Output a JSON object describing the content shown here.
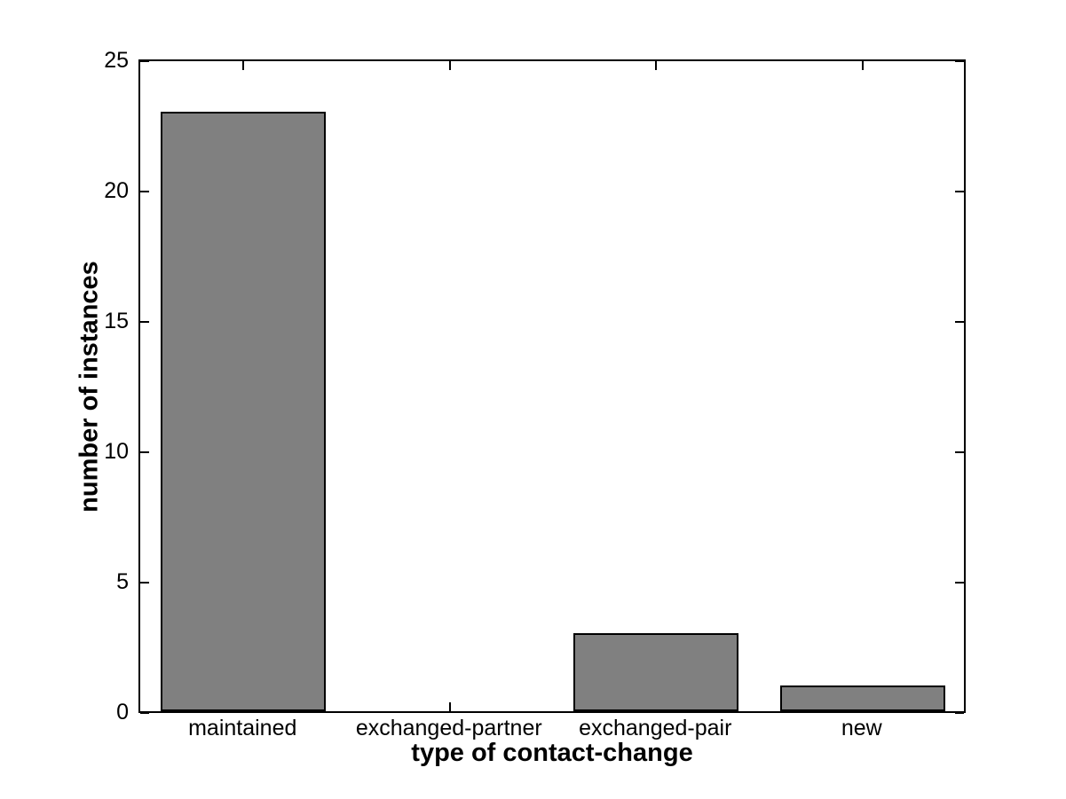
{
  "chart_data": {
    "type": "bar",
    "categories": [
      "maintained",
      "exchanged-partner",
      "exchanged-pair",
      "new"
    ],
    "values": [
      23,
      0,
      3,
      1
    ],
    "title": "",
    "xlabel": "type of contact-change",
    "ylabel": "number of instances",
    "ylim": [
      0,
      25
    ],
    "yticks": [
      0,
      5,
      10,
      15,
      20,
      25
    ],
    "bar_width_fraction": 0.8,
    "grid": false,
    "legend": null,
    "colors": {
      "bar_fill": "#808080",
      "bar_edge": "#000000",
      "axis": "#000000",
      "background": "#ffffff"
    }
  }
}
